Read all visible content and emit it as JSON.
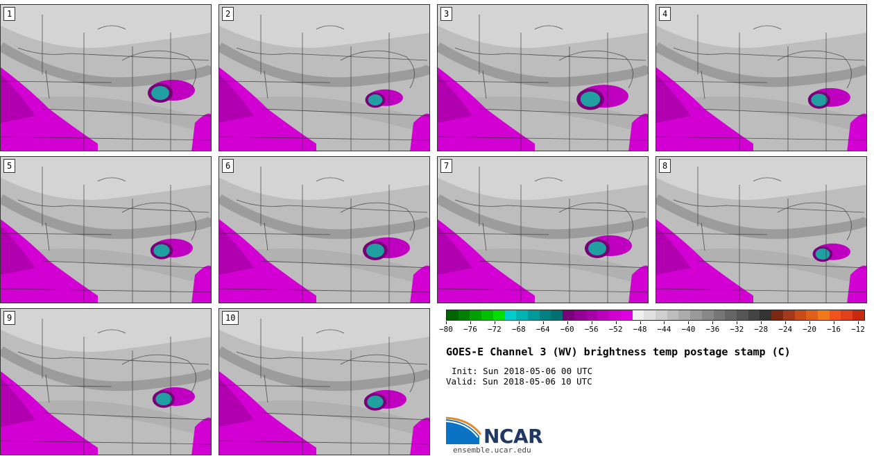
{
  "panels": [
    {
      "label": "1",
      "blob": [
        230,
        133
      ],
      "scale": 1.0
    },
    {
      "label": "2",
      "blob": [
        540,
        143
      ],
      "scale": 0.8
    },
    {
      "label": "3",
      "blob": [
        850,
        142
      ],
      "scale": 1.1
    },
    {
      "label": "4",
      "blob": [
        1180,
        143
      ],
      "scale": 0.9
    },
    {
      "label": "5",
      "blob": [
        232,
        360
      ],
      "scale": 0.9
    },
    {
      "label": "6",
      "blob": [
        540,
        360
      ],
      "scale": 1.0
    },
    {
      "label": "7",
      "blob": [
        860,
        357
      ],
      "scale": 1.0
    },
    {
      "label": "8",
      "blob": [
        1185,
        365
      ],
      "scale": 0.8
    },
    {
      "label": "9",
      "blob": [
        235,
        574
      ],
      "scale": 0.9
    },
    {
      "label": "10",
      "blob": [
        540,
        578
      ],
      "scale": 0.9
    }
  ],
  "colorbar": {
    "colors": [
      "#006400",
      "#008000",
      "#00a000",
      "#00c000",
      "#00e000",
      "#00cccc",
      "#00b3b3",
      "#009999",
      "#008080",
      "#007070",
      "#7a007a",
      "#940094",
      "#a800a8",
      "#bc00bc",
      "#d000d0",
      "#e000e0",
      "#f0f0f0",
      "#e0e0e0",
      "#cfcfcf",
      "#bdbdbd",
      "#acacac",
      "#9a9a9a",
      "#888888",
      "#777777",
      "#666666",
      "#555555",
      "#444444",
      "#333333",
      "#7a2a10",
      "#a03a1a",
      "#c84c1a",
      "#e0601a",
      "#f07a1a",
      "#f0541a",
      "#e0401a",
      "#c82a10"
    ],
    "tick_labels": [
      "−80",
      "−76",
      "−72",
      "−68",
      "−64",
      "−60",
      "−56",
      "−52",
      "−48",
      "−44",
      "−40",
      "−36",
      "−32",
      "−28",
      "−24",
      "−20",
      "−16",
      "−12"
    ]
  },
  "title": "GOES-E Channel 3 (WV) brightness temp postage stamp (C)",
  "init": "Init: Sun 2018-05-06 00 UTC",
  "valid": "Valid: Sun 2018-05-06 10 UTC",
  "logo": {
    "text": "NCAR",
    "url": "ensemble.ucar.edu",
    "accent": "#0a73c4"
  },
  "colors": {
    "magenta": "#d200d2",
    "teal": "#20a0a0",
    "dark_gray": "#8f8f8f",
    "light_gray": "#cfcfcf"
  }
}
